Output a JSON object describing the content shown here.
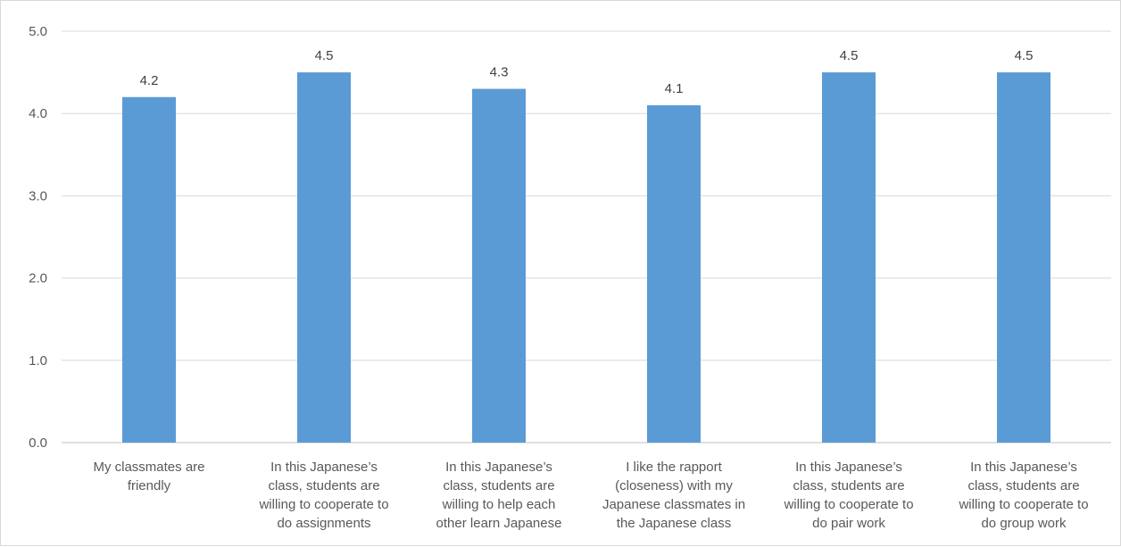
{
  "chart_data": {
    "type": "bar",
    "title": "",
    "xlabel": "",
    "ylabel": "",
    "ylim": [
      0,
      5
    ],
    "yticks": [
      "0.0",
      "1.0",
      "2.0",
      "3.0",
      "4.0",
      "5.0"
    ],
    "grid": true,
    "legend": "none",
    "bar_color": "#5b9bd5",
    "categories": [
      [
        "My classmates are",
        "friendly"
      ],
      [
        "In this Japanese’s",
        "class, students are",
        "willing to cooperate to",
        "do assignments"
      ],
      [
        "In this Japanese’s",
        "class, students are",
        "willing to help each",
        "other learn Japanese"
      ],
      [
        "I like the rapport",
        "(closeness) with my",
        "Japanese classmates in",
        "the Japanese class"
      ],
      [
        "In this Japanese’s",
        "class, students are",
        "willing to cooperate to",
        "do pair work"
      ],
      [
        "In this Japanese’s",
        "class, students are",
        "willing to cooperate to",
        "do group work"
      ]
    ],
    "values": [
      4.2,
      4.5,
      4.3,
      4.1,
      4.5,
      4.5
    ],
    "value_labels": [
      "4.2",
      "4.5",
      "4.3",
      "4.1",
      "4.5",
      "4.5"
    ]
  }
}
